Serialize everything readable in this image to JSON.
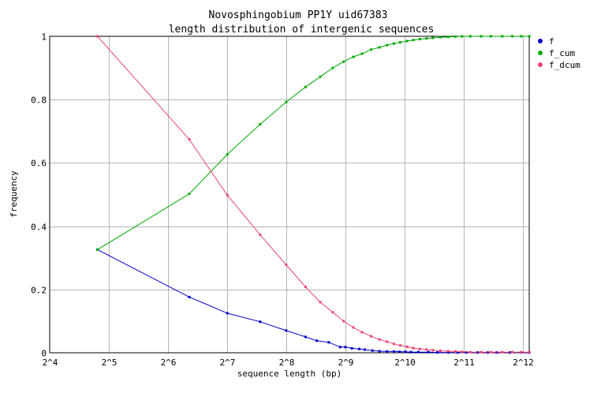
{
  "chart_data": {
    "type": "line",
    "title_line1": "Novosphingobium PP1Y uid67383",
    "title_line2": "length distribution of intergenic sequences",
    "xlabel": "sequence length (bp)",
    "ylabel": "frequency",
    "x_scale": "log2",
    "x_ticks": [
      "2^4",
      "2^5",
      "2^6",
      "2^7",
      "2^8",
      "2^9",
      "2^10",
      "2^11",
      "2^12"
    ],
    "x_tick_exponents": [
      4,
      5,
      6,
      7,
      8,
      9,
      10,
      11,
      12
    ],
    "y_ticks": [
      "0",
      "0.2",
      "0.4",
      "0.6",
      "0.8",
      "1"
    ],
    "y_tick_values": [
      0,
      0.2,
      0.4,
      0.6,
      0.8,
      1
    ],
    "xlim_exp": [
      4,
      12.1
    ],
    "ylim": [
      0,
      1
    ],
    "grid": true,
    "legend_position": "right",
    "series": [
      {
        "name": "f",
        "color": "#0000cc",
        "x": [
          28,
          82,
          128,
          188,
          255,
          320,
          365,
          420,
          480,
          510,
          550,
          600,
          640,
          700,
          760,
          830,
          900,
          960,
          1030,
          1100,
          1200,
          1350,
          1500,
          1700,
          1900,
          2100,
          2400,
          2700,
          3000,
          3500,
          4000,
          4400
        ],
        "y": [
          0.326,
          0.176,
          0.125,
          0.098,
          0.07,
          0.05,
          0.038,
          0.033,
          0.018,
          0.018,
          0.014,
          0.012,
          0.01,
          0.007,
          0.005,
          0.004,
          0.004,
          0.003,
          0.003,
          0.002,
          0.002,
          0.002,
          0.001,
          0.001,
          0.001,
          0.001,
          0.001,
          0.001,
          0.001,
          0.001,
          0.001,
          0.001
        ]
      },
      {
        "name": "f_cum",
        "color": "#00aa00",
        "x": [
          28,
          82,
          128,
          188,
          255,
          320,
          380,
          440,
          500,
          560,
          620,
          690,
          760,
          830,
          900,
          970,
          1050,
          1130,
          1220,
          1320,
          1420,
          1550,
          1700,
          1850,
          2000,
          2200,
          2500,
          2800,
          3200,
          3600,
          4000,
          4400
        ],
        "y": [
          0.326,
          0.502,
          0.627,
          0.722,
          0.792,
          0.84,
          0.872,
          0.9,
          0.92,
          0.935,
          0.945,
          0.958,
          0.965,
          0.972,
          0.977,
          0.981,
          0.985,
          0.988,
          0.991,
          0.993,
          0.995,
          0.997,
          0.998,
          0.999,
          1.0,
          1.0,
          1.0,
          1.0,
          1.0,
          1.0,
          1.0,
          1.0
        ]
      },
      {
        "name": "f_dcum",
        "color": "#e8457a",
        "x": [
          28,
          82,
          128,
          188,
          255,
          320,
          380,
          440,
          500,
          560,
          620,
          690,
          760,
          830,
          900,
          970,
          1050,
          1130,
          1220,
          1320,
          1420,
          1550,
          1700,
          1850,
          2000,
          2200,
          2500,
          2800,
          3200,
          3600,
          4000,
          4400
        ],
        "y": [
          1.0,
          0.674,
          0.498,
          0.373,
          0.278,
          0.208,
          0.16,
          0.128,
          0.1,
          0.08,
          0.065,
          0.052,
          0.042,
          0.035,
          0.028,
          0.023,
          0.019,
          0.015,
          0.012,
          0.01,
          0.008,
          0.006,
          0.005,
          0.004,
          0.003,
          0.002,
          0.002,
          0.002,
          0.002,
          0.002,
          0.002,
          0.002
        ]
      }
    ]
  }
}
